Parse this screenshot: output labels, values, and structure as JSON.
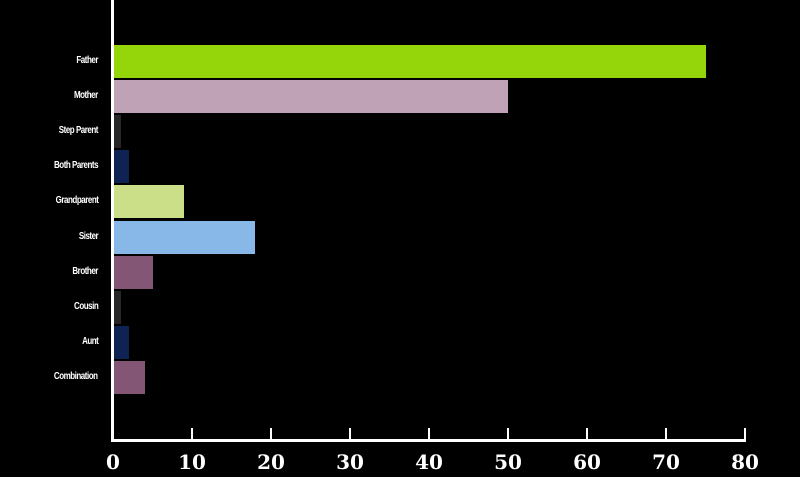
{
  "chart_data": {
    "type": "bar",
    "orientation": "horizontal",
    "title": "",
    "xlabel": "",
    "ylabel": "",
    "xlim": [
      0,
      80
    ],
    "x_ticks": [
      "0",
      "10",
      "20",
      "30",
      "40",
      "50",
      "60",
      "70",
      "80"
    ],
    "grid": false,
    "legend": null,
    "categories": [
      "Father",
      "Mother",
      "Step Parent",
      "Both Parents",
      "Grandparent",
      "Sister",
      "Brother",
      "Cousin",
      "Aunt",
      "Combination"
    ],
    "values": [
      75,
      50,
      1,
      2,
      9,
      18,
      5,
      1,
      2,
      4
    ],
    "colors": [
      "#94d60a",
      "#bfa2b6",
      "#272525",
      "#0e2352",
      "#cadf88",
      "#88b8e8",
      "#835676",
      "#272525",
      "#0e2352",
      "#835676"
    ]
  },
  "background": "#000000"
}
